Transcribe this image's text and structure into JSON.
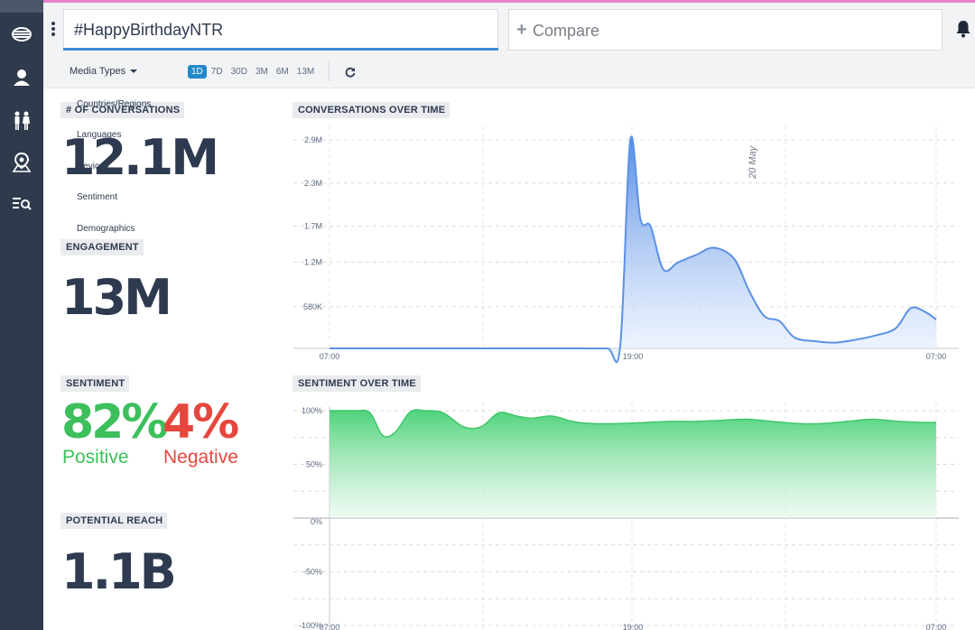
{
  "header": {
    "query": "#HappyBirthdayNTR",
    "compare_label": "Compare",
    "media_types_label": "Media Types",
    "ranges": [
      "1D",
      "7D",
      "30D",
      "3M",
      "6M",
      "13M"
    ],
    "active_range": "1D"
  },
  "sidebar": {
    "icons": [
      "dashboard-icon",
      "user-icon",
      "demographics-icon",
      "location-icon",
      "search-list-icon"
    ]
  },
  "dropdown_menu": {
    "items": [
      "Countries/Regions",
      "Languages",
      "Devices",
      "Sentiment",
      "Demographics"
    ]
  },
  "metrics": {
    "conversations": {
      "label": "# OF CONVERSATIONS",
      "value": "12.1M"
    },
    "engagement": {
      "label": "ENGAGEMENT",
      "value": "13M"
    },
    "sentiment": {
      "label": "SENTIMENT",
      "positive_value": "82%",
      "positive_label": "Positive",
      "negative_value": "4%",
      "negative_label": "Negative"
    },
    "reach": {
      "label": "POTENTIAL REACH",
      "value": "1.1B"
    }
  },
  "colors": {
    "sidebar": "#2f3b4c",
    "accent": "#2389c9",
    "positive": "#3dbf5c",
    "negative": "#e5473e",
    "conversations_fill": "#5b91e6",
    "sentiment_fill": "#4fd27a"
  },
  "chart_data": [
    {
      "type": "area",
      "title": "CONVERSATIONS OVER TIME",
      "x_ticks": [
        "07:00",
        "19:00",
        "07:00"
      ],
      "y_ticks": [
        "580K",
        "1.2M",
        "1.7M",
        "2.3M",
        "2.9M"
      ],
      "annotation": "20 May",
      "x_hours": [
        0,
        2,
        4,
        6,
        8,
        10,
        11,
        11.5,
        11.9,
        12.3,
        12.7,
        13.2,
        13.8,
        14.5,
        15.2,
        16.0,
        16.6,
        17.2,
        17.8,
        18.4,
        19.2,
        20.0,
        20.8,
        21.6,
        22.4,
        23.0,
        23.6,
        24
      ],
      "values": [
        0,
        0,
        0,
        0,
        0,
        0,
        0,
        30000,
        2900000,
        1800000,
        1700000,
        1100000,
        1200000,
        1300000,
        1400000,
        1250000,
        800000,
        450000,
        380000,
        150000,
        100000,
        80000,
        120000,
        180000,
        280000,
        560000,
        500000,
        400000
      ],
      "ylim": [
        0,
        2900000
      ],
      "grid": true
    },
    {
      "type": "area",
      "title": "SENTIMENT OVER TIME",
      "x_ticks": [
        "07:00",
        "19:00",
        "07:00"
      ],
      "y_ticks": [
        "100%",
        "50%",
        "0%",
        "-50%",
        "-100%"
      ],
      "x_hours": [
        0,
        1,
        1.6,
        2.1,
        2.6,
        3.2,
        3.8,
        4.5,
        5.3,
        6.0,
        6.7,
        7.4,
        8.0,
        8.8,
        9.6,
        10.4,
        11.5,
        12.5,
        13.5,
        14.5,
        15.5,
        16.5,
        17.5,
        18.5,
        19.5,
        20.5,
        21.5,
        22.5,
        23.5,
        24
      ],
      "values": [
        100,
        100,
        98,
        77,
        80,
        99,
        100,
        98,
        85,
        85,
        98,
        95,
        93,
        95,
        90,
        88,
        88,
        89,
        90,
        90,
        91,
        92,
        90,
        88,
        88,
        90,
        92,
        90,
        89,
        89
      ],
      "ylim": [
        -100,
        100
      ],
      "grid": true
    }
  ]
}
